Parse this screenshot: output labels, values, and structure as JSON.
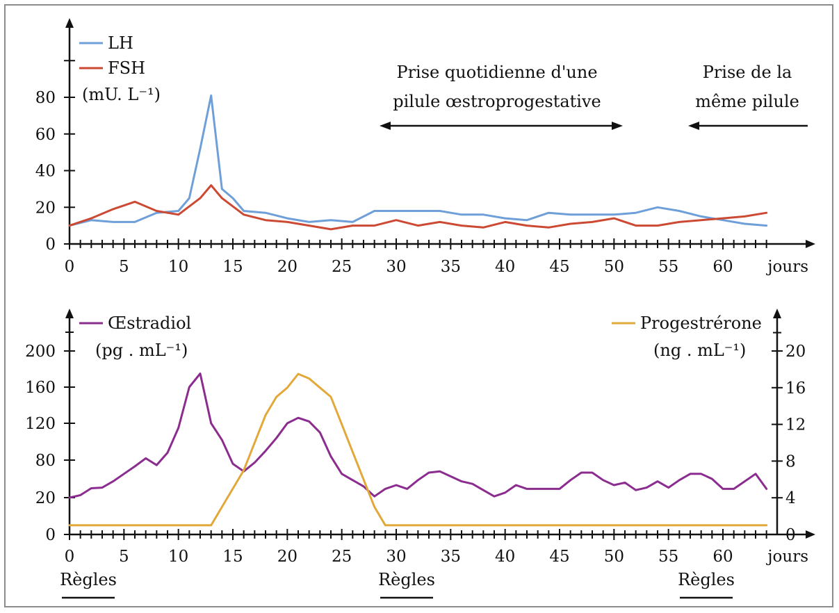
{
  "chart_data": [
    {
      "type": "line",
      "xlabel": "jours",
      "ylabel": "(mU. L⁻¹)",
      "xlim": [
        0,
        65
      ],
      "ylim": [
        0,
        100
      ],
      "x_ticks": [
        "0",
        "5",
        "10",
        "15",
        "20",
        "25",
        "30",
        "35",
        "40",
        "45",
        "50",
        "55",
        "60"
      ],
      "y_ticks": [
        "0",
        "20",
        "40",
        "60",
        "80"
      ],
      "legend_placement": "top-left",
      "series": [
        {
          "name": "LH",
          "color": "#6f9fd8",
          "x": [
            0,
            2,
            4,
            6,
            8,
            10,
            11,
            12,
            13,
            14,
            15,
            16,
            18,
            20,
            22,
            24,
            26,
            28,
            30,
            32,
            34,
            36,
            38,
            40,
            42,
            44,
            46,
            48,
            50,
            52,
            54,
            56,
            58,
            60,
            62,
            64
          ],
          "y": [
            10,
            13,
            12,
            12,
            17,
            18,
            25,
            52,
            81,
            30,
            25,
            18,
            17,
            14,
            12,
            13,
            12,
            18,
            18,
            18,
            18,
            16,
            16,
            14,
            13,
            17,
            16,
            16,
            16,
            17,
            20,
            18,
            15,
            13,
            11,
            10
          ]
        },
        {
          "name": "FSH",
          "color": "#cc4a33",
          "x": [
            0,
            2,
            4,
            6,
            8,
            10,
            12,
            13,
            14,
            16,
            18,
            20,
            22,
            24,
            26,
            28,
            30,
            32,
            34,
            36,
            38,
            40,
            42,
            44,
            46,
            48,
            50,
            52,
            54,
            56,
            58,
            60,
            62,
            64
          ],
          "y": [
            10,
            14,
            19,
            23,
            18,
            16,
            25,
            32,
            25,
            16,
            13,
            12,
            10,
            8,
            10,
            10,
            13,
            10,
            12,
            10,
            9,
            12,
            10,
            9,
            11,
            12,
            14,
            10,
            10,
            12,
            13,
            14,
            15,
            17
          ]
        }
      ],
      "annotations": [
        {
          "text_lines": [
            "Prise quotidienne d'une",
            "pilule œstroprogestative"
          ],
          "x_range": [
            28,
            51
          ]
        },
        {
          "text_lines": [
            "Prise de la",
            "même pilule"
          ],
          "x_range": [
            57,
            65
          ]
        }
      ]
    },
    {
      "type": "line",
      "xlabel": "jours",
      "ylabel_left": "(pg . mL⁻¹)",
      "ylabel_right": "(ng . mL⁻¹)",
      "xlim": [
        0,
        65
      ],
      "x_ticks": [
        "0",
        "5",
        "10",
        "15",
        "20",
        "25",
        "30",
        "35",
        "40",
        "45",
        "50",
        "55",
        "60"
      ],
      "y_left_ticks": [
        "0",
        "20",
        "80",
        "120",
        "160",
        "200"
      ],
      "y_right_ticks": [
        "0",
        "4",
        "8",
        "12",
        "16",
        "20"
      ],
      "series": [
        {
          "name": "Œstradiol",
          "color": "#8b2c8f",
          "axis": "left",
          "x": [
            0,
            1,
            2,
            3,
            4,
            5,
            6,
            7,
            8,
            9,
            10,
            11,
            12,
            13,
            14,
            15,
            16,
            17,
            18,
            19,
            20,
            21,
            22,
            23,
            24,
            25,
            26,
            27,
            28,
            29,
            30,
            31,
            32,
            33,
            34,
            35,
            36,
            37,
            38,
            39,
            40,
            41,
            42,
            43,
            44,
            45,
            46,
            47,
            48,
            49,
            50,
            51,
            52,
            53,
            54,
            55,
            56,
            57,
            58,
            59,
            60,
            61,
            62,
            63,
            64
          ],
          "y": [
            20,
            24,
            35,
            36,
            46,
            58,
            70,
            82,
            72,
            88,
            115,
            160,
            175,
            120,
            102,
            74,
            62,
            76,
            90,
            104,
            120,
            126,
            122,
            110,
            84,
            58,
            48,
            38,
            22,
            34,
            40,
            34,
            48,
            60,
            62,
            54,
            46,
            42,
            32,
            22,
            28,
            40,
            34,
            34,
            34,
            34,
            48,
            60,
            60,
            48,
            40,
            44,
            32,
            36,
            46,
            36,
            48,
            58,
            58,
            50,
            34,
            34,
            46,
            58,
            34
          ]
        },
        {
          "name": "Progestrérone",
          "color": "#e2a83a",
          "axis": "right",
          "x": [
            0,
            2,
            4,
            6,
            8,
            10,
            12,
            13,
            14,
            15,
            16,
            17,
            18,
            19,
            20,
            21,
            22,
            23,
            24,
            25,
            26,
            27,
            28,
            29,
            30,
            35,
            40,
            45,
            50,
            55,
            60,
            64
          ],
          "y": [
            1,
            1,
            1,
            1,
            1,
            1,
            1,
            1,
            3,
            5,
            7,
            10,
            13,
            15,
            16,
            17.5,
            17,
            16,
            15,
            12,
            9,
            6,
            3,
            1,
            1,
            1,
            1,
            1,
            1,
            1,
            1,
            1
          ]
        }
      ],
      "bottom_labels": [
        {
          "text": "Règles",
          "x": 0
        },
        {
          "text": "Règles",
          "x": 29
        },
        {
          "text": "Règles",
          "x": 57
        }
      ]
    }
  ]
}
